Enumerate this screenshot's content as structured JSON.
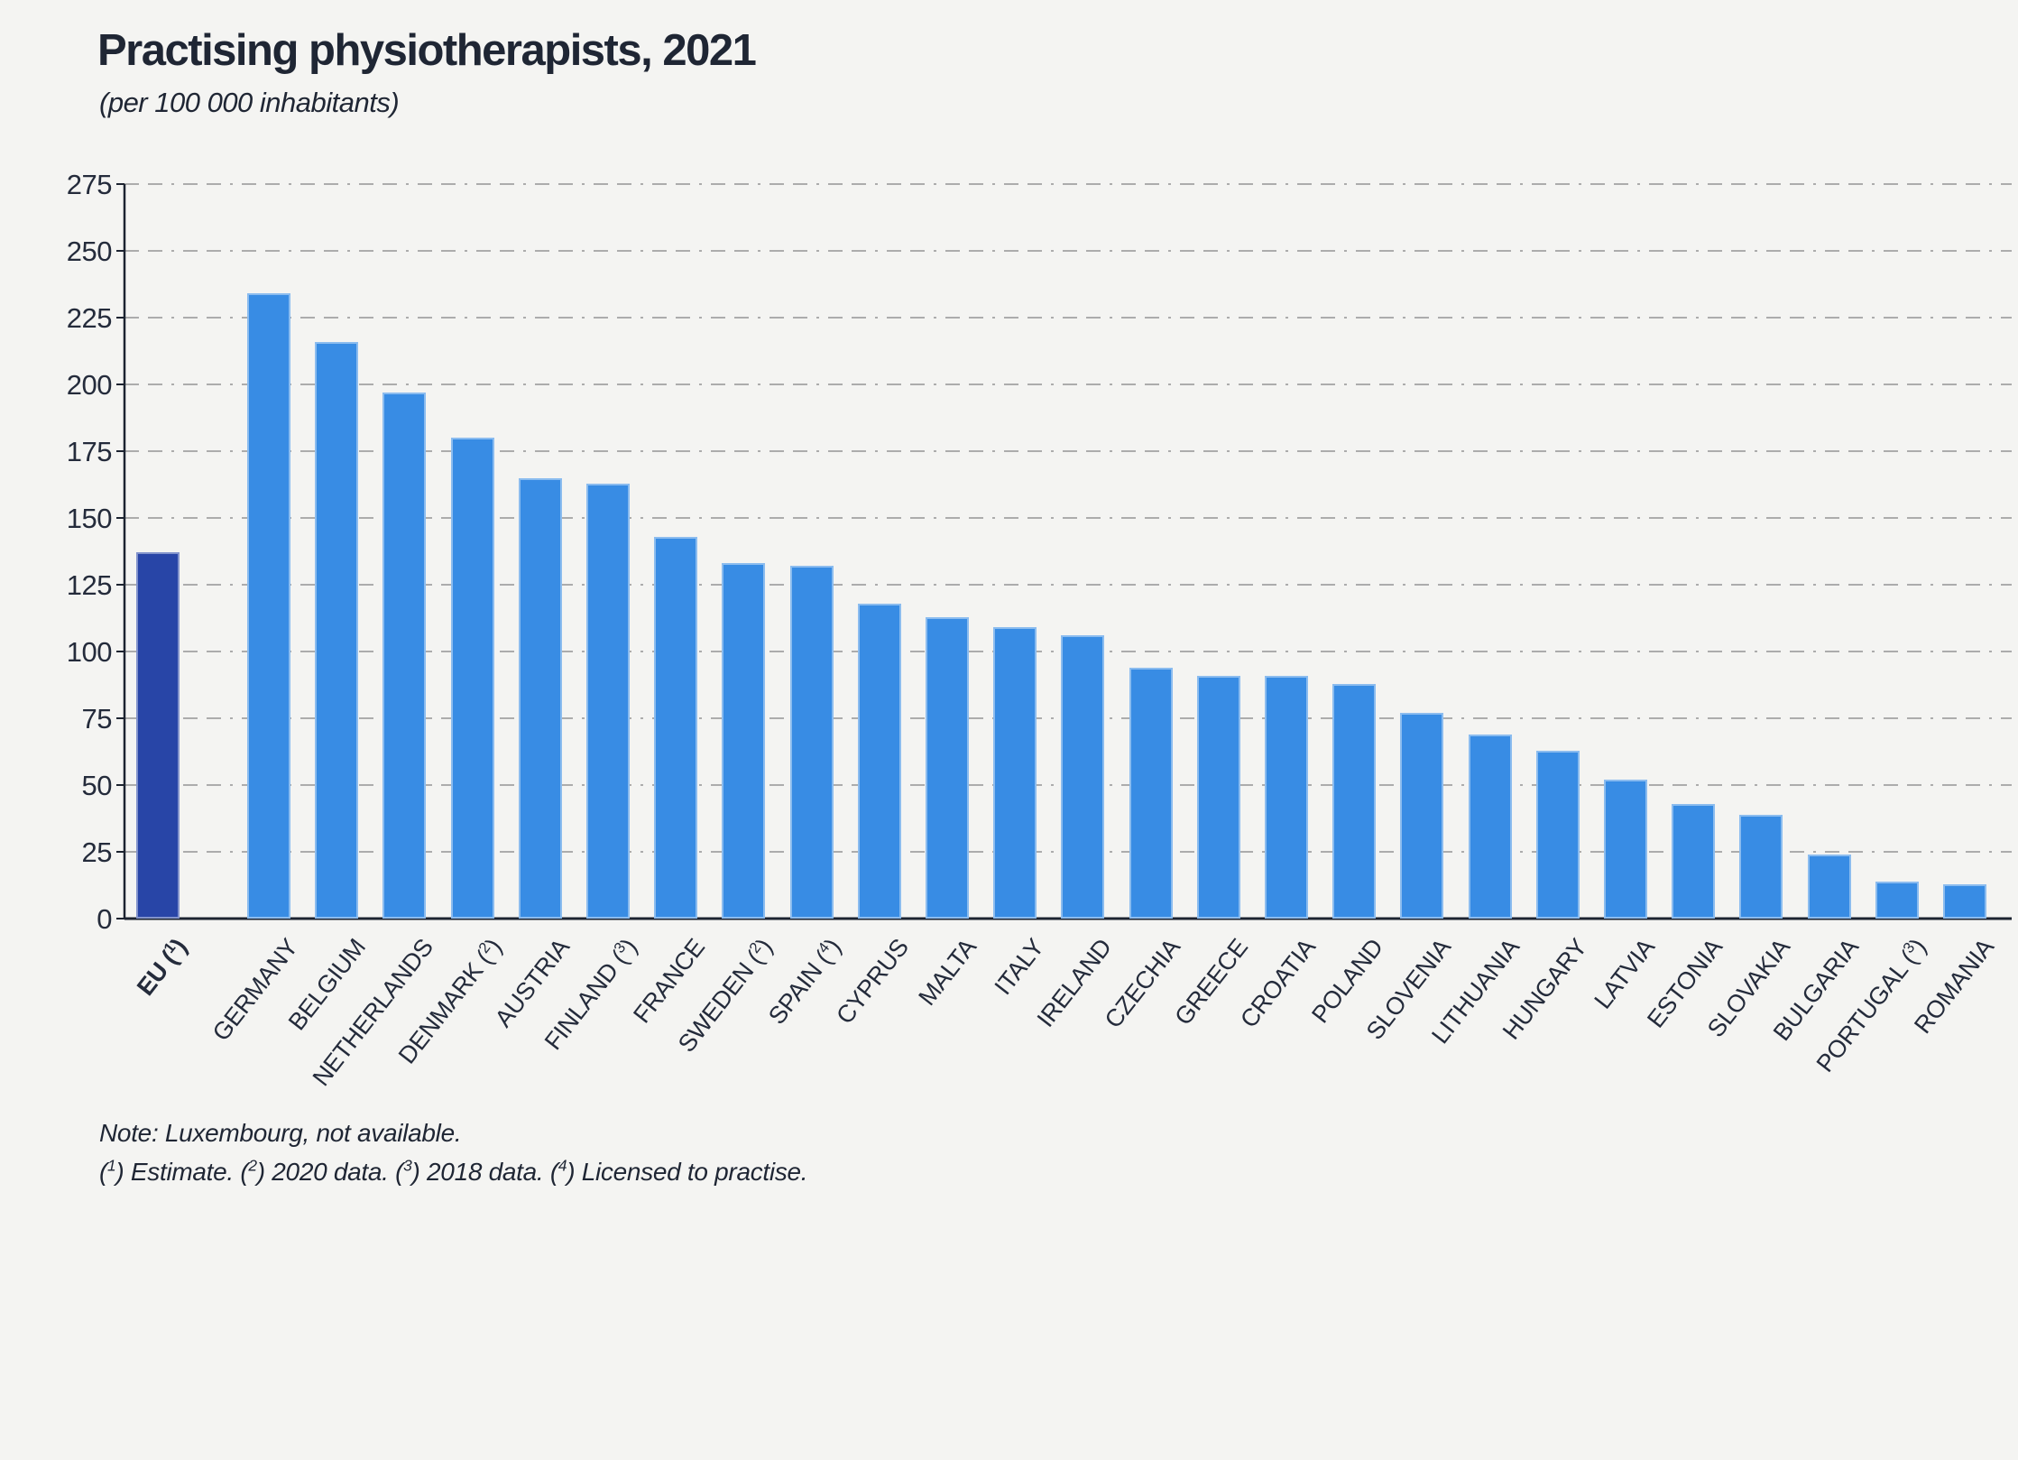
{
  "header": {
    "title": "Practising physiotherapists, 2021",
    "subtitle": "(per 100 000 inhabitants)"
  },
  "notes": {
    "line1": "Note: Luxembourg, not available.",
    "line2_parts": [
      {
        "marker": "1",
        "text": "Estimate."
      },
      {
        "marker": "2",
        "text": "2020 data."
      },
      {
        "marker": "3",
        "text": "2018 data."
      },
      {
        "marker": "4",
        "text": "Licensed to practise."
      }
    ]
  },
  "chart_data": {
    "type": "bar",
    "title": "Practising physiotherapists, 2021",
    "subtitle": "(per 100 000 inhabitants)",
    "xlabel": "",
    "ylabel": "per 100 000 inhabitants",
    "ylim": [
      0,
      275
    ],
    "ytick_step": 25,
    "grid": "horizontal-dashed",
    "legend": "none",
    "colors": {
      "bar": "#388ce4",
      "highlight_bar": "#2845a7",
      "gridline": "#acacac",
      "axis": "#1c2330",
      "text": "#242b3b",
      "background": "#f4f4f2"
    },
    "categories": [
      {
        "label": "EU",
        "note": "1",
        "value": 137,
        "highlight": true
      },
      {
        "label": "GERMANY",
        "note": "",
        "value": 234,
        "highlight": false
      },
      {
        "label": "BELGIUM",
        "note": "",
        "value": 216,
        "highlight": false
      },
      {
        "label": "NETHERLANDS",
        "note": "",
        "value": 197,
        "highlight": false
      },
      {
        "label": "DENMARK",
        "note": "2",
        "value": 180,
        "highlight": false
      },
      {
        "label": "AUSTRIA",
        "note": "",
        "value": 165,
        "highlight": false
      },
      {
        "label": "FINLAND",
        "note": "3",
        "value": 163,
        "highlight": false
      },
      {
        "label": "FRANCE",
        "note": "",
        "value": 143,
        "highlight": false
      },
      {
        "label": "SWEDEN",
        "note": "2",
        "value": 133,
        "highlight": false
      },
      {
        "label": "SPAIN",
        "note": "4",
        "value": 132,
        "highlight": false
      },
      {
        "label": "CYPRUS",
        "note": "",
        "value": 118,
        "highlight": false
      },
      {
        "label": "MALTA",
        "note": "",
        "value": 113,
        "highlight": false
      },
      {
        "label": "ITALY",
        "note": "",
        "value": 109,
        "highlight": false
      },
      {
        "label": "IRELAND",
        "note": "",
        "value": 106,
        "highlight": false
      },
      {
        "label": "CZECHIA",
        "note": "",
        "value": 94,
        "highlight": false
      },
      {
        "label": "GREECE",
        "note": "",
        "value": 91,
        "highlight": false
      },
      {
        "label": "CROATIA",
        "note": "",
        "value": 91,
        "highlight": false
      },
      {
        "label": "POLAND",
        "note": "",
        "value": 88,
        "highlight": false
      },
      {
        "label": "SLOVENIA",
        "note": "",
        "value": 77,
        "highlight": false
      },
      {
        "label": "LITHUANIA",
        "note": "",
        "value": 69,
        "highlight": false
      },
      {
        "label": "HUNGARY",
        "note": "",
        "value": 63,
        "highlight": false
      },
      {
        "label": "LATVIA",
        "note": "",
        "value": 52,
        "highlight": false
      },
      {
        "label": "ESTONIA",
        "note": "",
        "value": 43,
        "highlight": false
      },
      {
        "label": "SLOVAKIA",
        "note": "",
        "value": 39,
        "highlight": false
      },
      {
        "label": "BULGARIA",
        "note": "",
        "value": 24,
        "highlight": false
      },
      {
        "label": "PORTUGAL",
        "note": "3",
        "value": 14,
        "highlight": false
      },
      {
        "label": "ROMANIA",
        "note": "",
        "value": 13,
        "highlight": false
      }
    ]
  }
}
